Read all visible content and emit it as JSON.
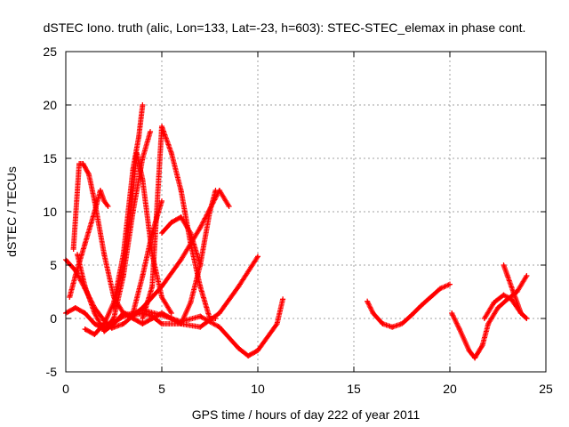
{
  "chart_data": {
    "type": "scatter",
    "title": "dSTEC Iono. truth (alic, Lon=133, Lat=-23, h=603): STEC-STEC_elemax in phase cont.",
    "xlabel": "GPS time / hours of day 222 of year 2011",
    "ylabel": "dSTEC  / TECUs",
    "xlim": [
      0,
      25
    ],
    "ylim": [
      -5,
      25
    ],
    "x_ticks": [
      0,
      5,
      10,
      15,
      20,
      25
    ],
    "y_ticks": [
      -5,
      0,
      5,
      10,
      15,
      20,
      25
    ],
    "grid": true,
    "marker": "+",
    "color": "#ff0000",
    "series": [
      {
        "x": [
          0.0,
          0.5,
          1.0,
          1.5,
          2.0,
          2.4,
          3.0,
          4.0,
          5.0,
          6.0,
          7.0,
          8.0,
          8.5
        ],
        "y": [
          5.5,
          4.5,
          2.8,
          1.0,
          -0.2,
          -0.9,
          -0.5,
          1.0,
          3.0,
          5.5,
          8.5,
          12.0,
          10.5
        ]
      },
      {
        "x": [
          0.0,
          0.5,
          1.0,
          1.5,
          2.0,
          3.0,
          4.0,
          5.0,
          6.0,
          7.0,
          8.0,
          9.0,
          9.5,
          10.0,
          11.0,
          11.3
        ],
        "y": [
          0.5,
          1.0,
          0.5,
          -0.5,
          -1.0,
          0.2,
          0.8,
          0.3,
          -0.3,
          0.2,
          -0.8,
          -2.8,
          -3.5,
          -3.0,
          -0.5,
          1.8
        ]
      },
      {
        "x": [
          0.2,
          0.5,
          1.0,
          1.5,
          1.8,
          2.0,
          2.2
        ],
        "y": [
          2.0,
          4.0,
          7.0,
          10.0,
          12.0,
          11.0,
          10.5
        ]
      },
      {
        "x": [
          0.4,
          0.7,
          0.9,
          1.2,
          1.5,
          2.0,
          2.5,
          3.0,
          3.5,
          4.0,
          4.5,
          5.0,
          6.0,
          7.0,
          8.0,
          9.0,
          10.0
        ],
        "y": [
          6.5,
          14.5,
          14.5,
          13.5,
          11.0,
          6.0,
          2.0,
          0.5,
          0.3,
          0.5,
          0.2,
          -0.5,
          -0.5,
          -0.8,
          0.5,
          3.0,
          5.8
        ]
      },
      {
        "x": [
          0.6,
          1.0,
          1.5,
          2.0,
          2.5,
          3.0,
          3.5,
          4.0,
          4.5,
          5.0
        ],
        "y": [
          6.0,
          3.0,
          0.5,
          -1.2,
          -0.5,
          0.5,
          0.0,
          -0.5,
          0.0,
          0.5
        ]
      },
      {
        "x": [
          1.0,
          1.5,
          2.0,
          2.5,
          3.0,
          3.5,
          3.8,
          4.0
        ],
        "y": [
          -1.0,
          -1.5,
          -0.5,
          1.5,
          6.0,
          14.0,
          17.0,
          20.0
        ]
      },
      {
        "x": [
          2.0,
          2.5,
          3.0,
          3.5,
          4.0,
          4.4
        ],
        "y": [
          -1.0,
          0.0,
          4.0,
          10.0,
          15.0,
          17.5
        ]
      },
      {
        "x": [
          2.5,
          3.0,
          3.4,
          3.7,
          4.0,
          4.5,
          5.0,
          5.5
        ],
        "y": [
          1.0,
          5.0,
          10.0,
          15.5,
          13.0,
          6.0,
          2.0,
          0.5
        ]
      },
      {
        "x": [
          3.5,
          4.0,
          4.5,
          5.0
        ],
        "y": [
          0.5,
          4.0,
          8.0,
          11.0
        ]
      },
      {
        "x": [
          4.0,
          4.5,
          5.0,
          5.5,
          6.0,
          6.5,
          7.0,
          7.5,
          7.8
        ],
        "y": [
          0.0,
          3.0,
          18.0,
          15.5,
          12.0,
          7.0,
          3.0,
          0.0,
          0.0
        ]
      },
      {
        "x": [
          5.0,
          5.5,
          6.0,
          6.5,
          7.0,
          7.5,
          7.8
        ],
        "y": [
          0.5,
          0.0,
          -0.5,
          1.5,
          5.0,
          10.0,
          12.0
        ]
      },
      {
        "x": [
          5.0,
          5.5,
          6.0,
          6.5,
          7.0
        ],
        "y": [
          8.0,
          9.0,
          9.5,
          8.0,
          5.0
        ]
      },
      {
        "x": [
          15.7,
          16.0,
          16.5,
          17.0,
          17.5,
          18.0,
          18.5,
          19.0,
          19.5,
          20.0
        ],
        "y": [
          1.6,
          0.5,
          -0.5,
          -0.8,
          -0.5,
          0.3,
          1.2,
          2.0,
          2.8,
          3.2
        ]
      },
      {
        "x": [
          20.1,
          20.5,
          21.0,
          21.3,
          21.7,
          22.0,
          22.5,
          23.0,
          23.5,
          24.0
        ],
        "y": [
          0.5,
          -1.0,
          -3.0,
          -3.7,
          -2.5,
          -0.5,
          1.0,
          1.8,
          2.5,
          4.0
        ]
      },
      {
        "x": [
          21.8,
          22.3,
          22.8,
          23.2,
          23.7,
          24.0
        ],
        "y": [
          0.0,
          1.5,
          2.2,
          1.8,
          0.5,
          0.0
        ]
      },
      {
        "x": [
          22.8,
          23.0,
          23.3,
          23.7,
          24.0
        ],
        "y": [
          5.0,
          4.0,
          2.5,
          0.5,
          0.0
        ]
      }
    ]
  }
}
